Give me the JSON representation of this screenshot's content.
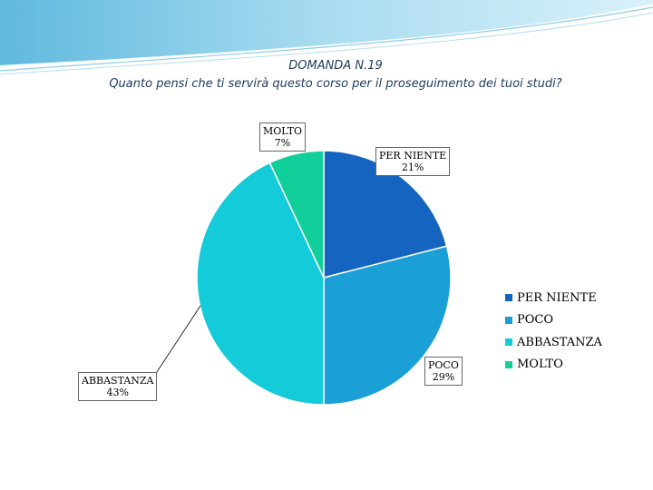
{
  "header": {
    "title_line1": "DOMANDA N.19",
    "title_line2": "Quanto pensi che ti servirà questo corso per il proseguimento dei tuoi studi?"
  },
  "chart_data": {
    "type": "pie",
    "title": "DOMANDA N.19 — Quanto pensi che ti servirà questo corso per il proseguimento dei tuoi studi?",
    "categories": [
      "PER NIENTE",
      "POCO",
      "ABBASTANZA",
      "MOLTO"
    ],
    "values": [
      21,
      29,
      43,
      7
    ],
    "labels": [
      "21%",
      "29%",
      "43%",
      "7%"
    ],
    "colors": [
      "#1565c0",
      "#1a9fd6",
      "#13cbd9",
      "#11cf9a"
    ],
    "legend_position": "right"
  }
}
